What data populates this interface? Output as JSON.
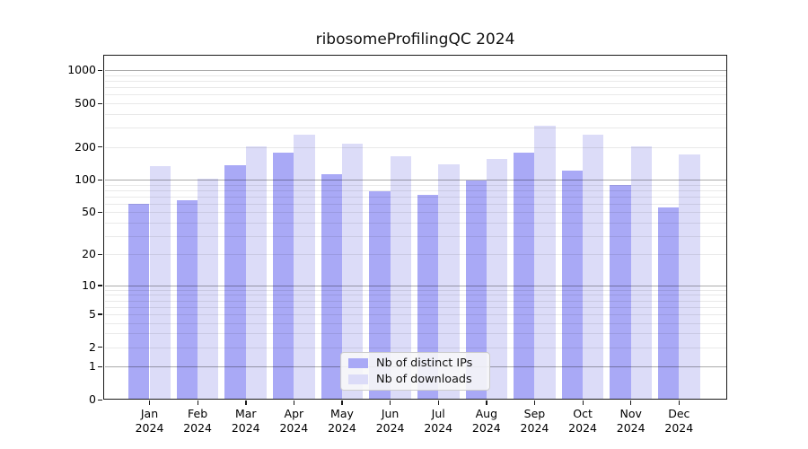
{
  "chart_data": {
    "type": "bar",
    "title": "ribosomeProfilingQC 2024",
    "categories": [
      "Jan 2024",
      "Feb 2024",
      "Mar 2024",
      "Apr 2024",
      "May 2024",
      "Jun 2024",
      "Jul 2024",
      "Aug 2024",
      "Sep 2024",
      "Oct 2024",
      "Nov 2024",
      "Dec 2024"
    ],
    "series": [
      {
        "name": "Nb of distinct IPs",
        "color": "#a9a9f6",
        "values": [
          60,
          65,
          137,
          178,
          113,
          78,
          72,
          98,
          178,
          120,
          89,
          55
        ]
      },
      {
        "name": "Nb of downloads",
        "color": "#dcdcf8",
        "values": [
          133,
          103,
          202,
          260,
          215,
          163,
          139,
          155,
          314,
          260,
          203,
          172
        ]
      }
    ],
    "xlabel": "",
    "ylabel": "",
    "yscale": "log1p",
    "yticks": [
      0,
      1,
      2,
      5,
      10,
      20,
      50,
      100,
      200,
      500,
      1000
    ],
    "ylim": [
      0,
      1400
    ],
    "grid": true,
    "legend_position": "lower center"
  },
  "colors": {
    "bar_distinct_ips": "#a9a9f6",
    "bar_downloads": "#dcdcf8",
    "axis": "#1a1a1a",
    "grid_minor": "#ebebeb",
    "grid_major": "#aaaaaa",
    "legend_bg": "#f8f8f8",
    "legend_border": "#cccccc"
  }
}
